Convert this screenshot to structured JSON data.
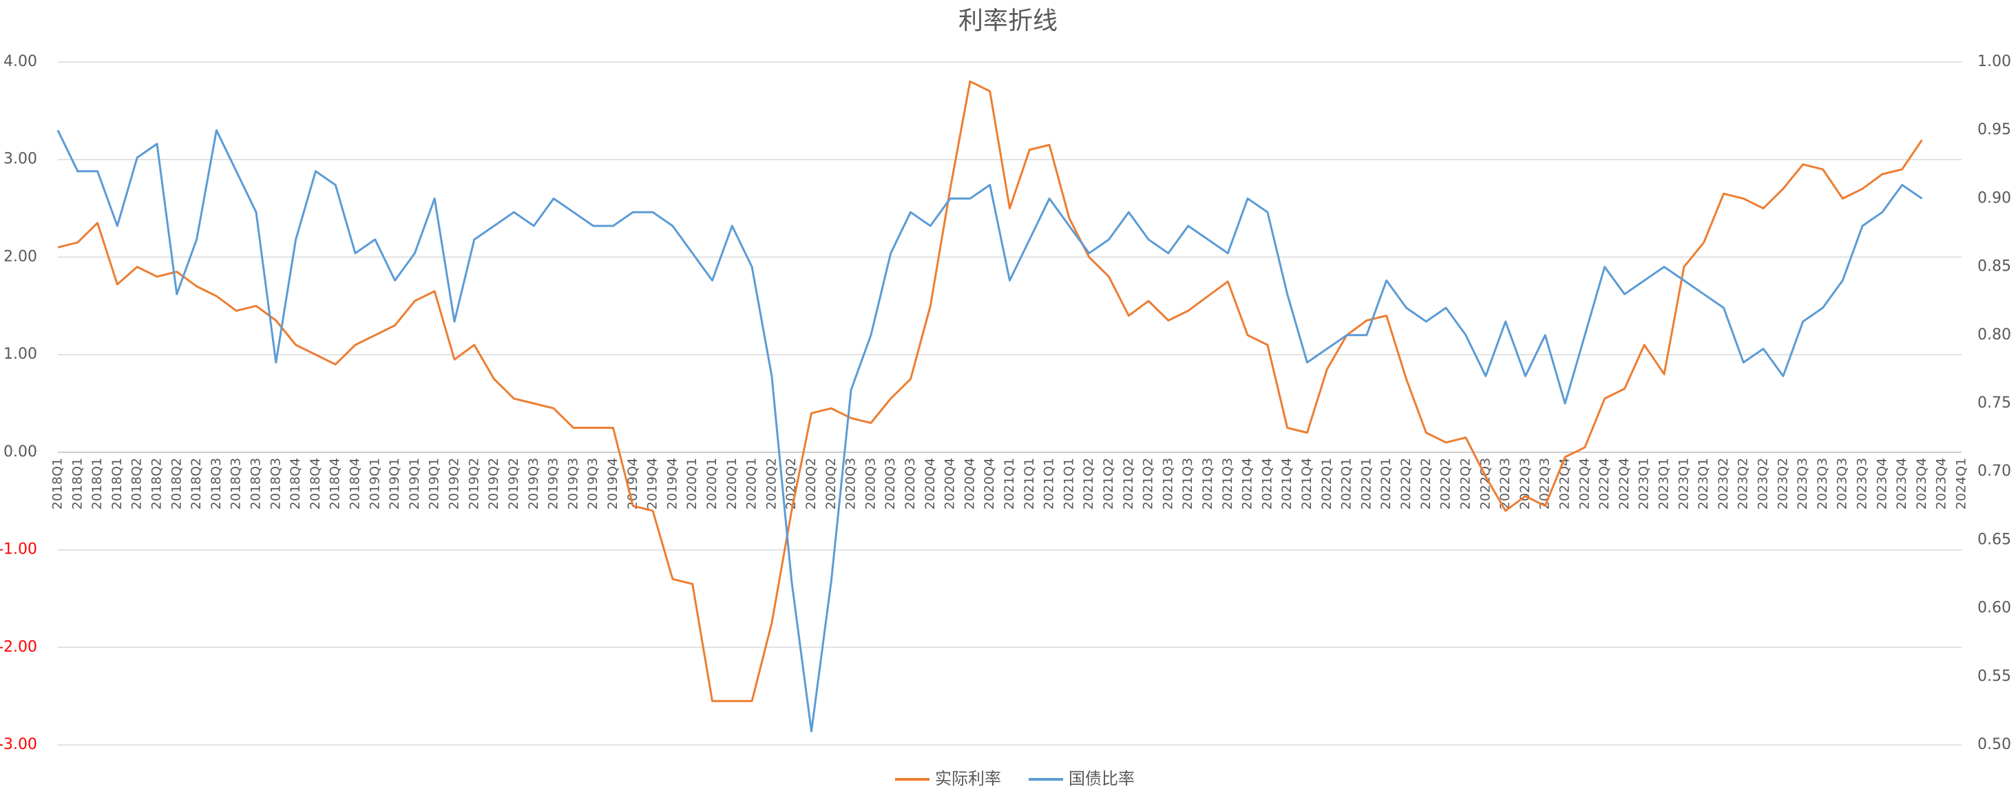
{
  "chart_data": {
    "type": "line",
    "title": "利率折线",
    "categories": [
      "2018Q1",
      "2018Q1",
      "2018Q1",
      "2018Q1",
      "2018Q2",
      "2018Q2",
      "2018Q2",
      "2018Q2",
      "2018Q3",
      "2018Q3",
      "2018Q3",
      "2018Q3",
      "2018Q4",
      "2018Q4",
      "2018Q4",
      "2018Q4",
      "2019Q1",
      "2019Q1",
      "2019Q1",
      "2019Q1",
      "2019Q2",
      "2019Q2",
      "2019Q2",
      "2019Q2",
      "2019Q3",
      "2019Q3",
      "2019Q3",
      "2019Q3",
      "2019Q4",
      "2019Q4",
      "2019Q4",
      "2019Q4",
      "2020Q1",
      "2020Q1",
      "2020Q1",
      "2020Q1",
      "2020Q2",
      "2020Q2",
      "2020Q2",
      "2020Q2",
      "2020Q3",
      "2020Q3",
      "2020Q3",
      "2020Q3",
      "2020Q4",
      "2020Q4",
      "2020Q4",
      "2020Q4",
      "2021Q1",
      "2021Q1",
      "2021Q1",
      "2021Q1",
      "2021Q2",
      "2021Q2",
      "2021Q2",
      "2021Q2",
      "2021Q3",
      "2021Q3",
      "2021Q3",
      "2021Q3",
      "2021Q4",
      "2021Q4",
      "2021Q4",
      "2021Q4",
      "2022Q1",
      "2022Q1",
      "2022Q1",
      "2022Q1",
      "2022Q2",
      "2022Q2",
      "2022Q2",
      "2022Q2",
      "2022Q3",
      "2022Q3",
      "2022Q3",
      "2022Q3",
      "2022Q4",
      "2022Q4",
      "2022Q4",
      "2022Q4",
      "2023Q1",
      "2023Q1",
      "2023Q1",
      "2023Q1",
      "2023Q2",
      "2023Q2",
      "2023Q2",
      "2023Q2",
      "2023Q3",
      "2023Q3",
      "2023Q3",
      "2023Q3",
      "2023Q4",
      "2023Q4",
      "2023Q4",
      "2023Q4",
      "2024Q1"
    ],
    "series": [
      {
        "name": "实际利率",
        "color": "#ed7d31",
        "values": [
          2.1,
          2.15,
          2.35,
          1.72,
          1.9,
          1.8,
          1.85,
          1.7,
          1.6,
          1.45,
          1.5,
          1.35,
          1.1,
          1.0,
          0.9,
          1.1,
          1.2,
          1.3,
          1.55,
          1.65,
          0.95,
          1.1,
          0.75,
          0.55,
          0.5,
          0.45,
          0.25,
          0.25,
          0.25,
          -0.55,
          -0.6,
          -1.3,
          -1.35,
          -2.55,
          -2.55,
          -2.55,
          -1.75,
          -0.6,
          0.4,
          0.45,
          0.35,
          0.3,
          0.55,
          0.75,
          1.5,
          2.7,
          3.8,
          3.7,
          2.5,
          3.1,
          3.15,
          2.4,
          2.0,
          1.8,
          1.4,
          1.55,
          1.35,
          1.45,
          1.6,
          1.75,
          1.2,
          1.1,
          0.25,
          0.2,
          0.85,
          1.2,
          1.35,
          1.4,
          0.75,
          0.2,
          0.1,
          0.15,
          -0.25,
          -0.6,
          -0.45,
          -0.55,
          -0.05,
          0.05,
          0.55,
          0.65,
          1.1,
          0.8,
          1.9,
          2.15,
          2.65,
          2.6,
          2.5,
          2.7,
          2.95,
          2.9,
          2.6,
          2.7,
          2.85,
          2.9,
          3.2,
          null,
          null
        ]
      },
      {
        "name": "国债比率",
        "color": "#5b9bd5",
        "axis": "y2",
        "values": [
          0.95,
          0.92,
          0.92,
          0.88,
          0.93,
          0.94,
          0.83,
          0.87,
          0.95,
          0.92,
          0.89,
          0.78,
          0.87,
          0.92,
          0.91,
          0.86,
          0.87,
          0.84,
          0.86,
          0.9,
          0.81,
          0.87,
          0.88,
          0.89,
          0.88,
          0.9,
          0.89,
          0.88,
          0.88,
          0.89,
          0.89,
          0.88,
          0.86,
          0.84,
          0.88,
          0.85,
          0.77,
          0.62,
          0.51,
          0.62,
          0.76,
          0.8,
          0.86,
          0.89,
          0.88,
          0.9,
          0.9,
          0.91,
          0.84,
          0.87,
          0.9,
          0.88,
          0.86,
          0.87,
          0.89,
          0.87,
          0.86,
          0.88,
          0.87,
          0.86,
          0.9,
          0.89,
          0.83,
          0.78,
          0.79,
          0.8,
          0.8,
          0.84,
          0.82,
          0.81,
          0.82,
          0.8,
          0.77,
          0.81,
          0.77,
          0.8,
          0.75,
          0.8,
          0.85,
          0.83,
          0.84,
          0.85,
          0.84,
          0.83,
          0.82,
          0.78,
          0.79,
          0.77,
          0.81,
          0.82,
          0.84,
          0.88,
          0.89,
          0.91,
          0.9,
          null,
          null
        ]
      }
    ],
    "ylim": [
      -3,
      4
    ],
    "yticks": [
      {
        "value": -3,
        "label": "-3.00"
      },
      {
        "value": -2,
        "label": "-2.00"
      },
      {
        "value": -1,
        "label": "-1.00"
      },
      {
        "value": 0,
        "label": "0.00"
      },
      {
        "value": 1,
        "label": "1.00"
      },
      {
        "value": 2,
        "label": "2.00"
      },
      {
        "value": 3,
        "label": "3.00"
      },
      {
        "value": 4,
        "label": "4.00"
      }
    ],
    "y2lim": [
      0.5,
      1.0
    ],
    "y2ticks": [
      {
        "value": 0.5,
        "label": "0.50"
      },
      {
        "value": 0.55,
        "label": "0.55"
      },
      {
        "value": 0.6,
        "label": "0.60"
      },
      {
        "value": 0.65,
        "label": "0.65"
      },
      {
        "value": 0.7,
        "label": "0.70"
      },
      {
        "value": 0.75,
        "label": "0.75"
      },
      {
        "value": 0.8,
        "label": "0.80"
      },
      {
        "value": 0.85,
        "label": "0.85"
      },
      {
        "value": 0.9,
        "label": "0.90"
      },
      {
        "value": 0.95,
        "label": "0.95"
      },
      {
        "value": 1.0,
        "label": "1.00"
      }
    ],
    "negative_tick_color": "#ff0000",
    "grid": true,
    "legend": "bottom"
  }
}
